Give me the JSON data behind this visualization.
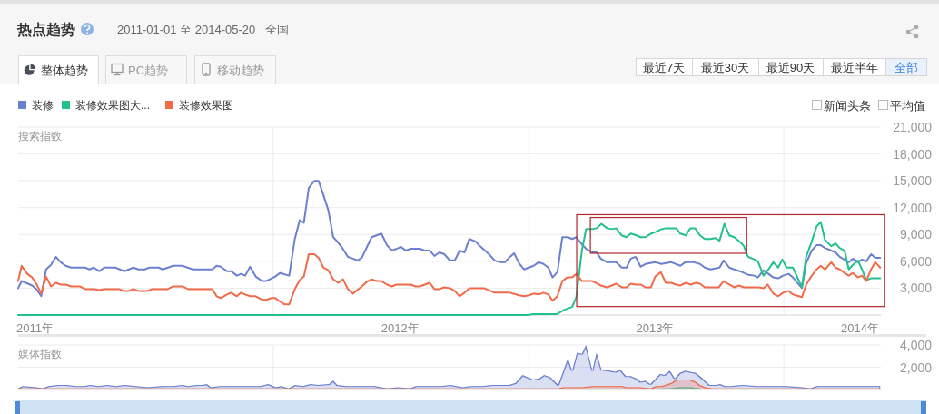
{
  "chart_data": [
    {
      "type": "line",
      "title": "热点趋势",
      "subtitle": "2011-01-01 至 2014-05-20",
      "ylabel": "搜索指数",
      "annotations": [
        "全国",
        "整体趋势",
        "PC趋势",
        "移动趋势",
        "最近7天",
        "最近30天",
        "最近90天",
        "最近半年",
        "全部",
        "新闻头条",
        "平均值"
      ],
      "xlim": [
        "2011-01-01",
        "2014-05-20"
      ],
      "xticks": [
        {
          "value": "2011-01-25",
          "label": "2011年"
        },
        {
          "value": "2012-01-01",
          "label": null
        },
        {
          "value": "2012-07-01",
          "label": "2012年"
        },
        {
          "value": "2013-01-01",
          "label": null
        },
        {
          "value": "2013-07-01",
          "label": "2013年"
        },
        {
          "value": "2014-01-01",
          "label": null
        },
        {
          "value": "2014-04-20",
          "label": "2014年"
        }
      ],
      "ylim": [
        0,
        21000
      ],
      "yticks": [
        {
          "value": 3000,
          "label": "3,000"
        },
        {
          "value": 6000,
          "label": "6,000"
        },
        {
          "value": 9000,
          "label": "9,000"
        },
        {
          "value": 12000,
          "label": "12,000"
        },
        {
          "value": 15000,
          "label": "15,000"
        },
        {
          "value": 18000,
          "label": "18,000"
        },
        {
          "value": 21000,
          "label": "21,000"
        }
      ],
      "grid": true,
      "legend": "top left",
      "series": [
        {
          "name": "装修",
          "color": "#6c80d0",
          "x": [
            "2011-01-01",
            "2011-01-06",
            "2011-01-21",
            "2011-01-27",
            "2011-02-03",
            "2011-02-10",
            "2011-02-17",
            "2011-02-24",
            "2011-03-03",
            "2011-03-10",
            "2011-03-18",
            "2011-04-07",
            "2011-04-13",
            "2011-04-19",
            "2011-04-27",
            "2011-05-04",
            "2011-05-20",
            "2011-06-02",
            "2011-06-15",
            "2011-06-22",
            "2011-07-01",
            "2011-07-08",
            "2011-07-21",
            "2011-07-27",
            "2011-08-11",
            "2011-08-24",
            "2011-09-08",
            "2011-10-06",
            "2011-10-12",
            "2011-10-18",
            "2011-10-27",
            "2011-11-02",
            "2011-11-10",
            "2011-11-16",
            "2011-11-22",
            "2011-11-29",
            "2011-12-07",
            "2011-12-16",
            "2011-12-22",
            "2012-01-04",
            "2012-01-11",
            "2012-01-24",
            "2012-02-01",
            "2012-02-08",
            "2012-02-14",
            "2012-02-21",
            "2012-02-29",
            "2012-03-06",
            "2012-03-13",
            "2012-03-20",
            "2012-03-27",
            "2012-04-02",
            "2012-04-09",
            "2012-04-17",
            "2012-05-01",
            "2012-05-07",
            "2012-05-21",
            "2012-06-04",
            "2012-06-12",
            "2012-06-19",
            "2012-07-02",
            "2012-07-09",
            "2012-07-16",
            "2012-07-29",
            "2012-08-05",
            "2012-08-12",
            "2012-08-19",
            "2012-08-26",
            "2012-09-02",
            "2012-09-10",
            "2012-09-17",
            "2012-09-24",
            "2012-10-01",
            "2012-10-08",
            "2012-10-17",
            "2012-10-23",
            "2012-11-05",
            "2012-11-13",
            "2012-11-21",
            "2012-11-28",
            "2012-12-05",
            "2012-12-11",
            "2012-12-18",
            "2012-12-25",
            "2013-01-01",
            "2013-01-08",
            "2013-01-15",
            "2013-01-22",
            "2013-01-29",
            "2013-02-04",
            "2013-02-11",
            "2013-02-18",
            "2013-02-26",
            "2013-03-04",
            "2013-03-10",
            "2013-03-18",
            "2013-03-24",
            "2013-04-02",
            "2013-04-08",
            "2013-04-14",
            "2013-04-23",
            "2013-05-06",
            "2013-05-14",
            "2013-05-21",
            "2013-05-27",
            "2013-06-03",
            "2013-06-10",
            "2013-06-17",
            "2013-07-01",
            "2013-07-10",
            "2013-07-24",
            "2013-08-06",
            "2013-08-13",
            "2013-08-25",
            "2013-09-03",
            "2013-09-10",
            "2013-09-18",
            "2013-10-01",
            "2013-10-07",
            "2013-10-15",
            "2013-10-22",
            "2013-10-30",
            "2013-11-05",
            "2013-11-11",
            "2013-11-20",
            "2013-11-25",
            "2013-12-03",
            "2013-12-10",
            "2013-12-17",
            "2013-12-24",
            "2013-12-31",
            "2014-01-08",
            "2014-01-14",
            "2014-01-27",
            "2014-02-02",
            "2014-02-10",
            "2014-02-17",
            "2014-02-23",
            "2014-03-01",
            "2014-03-10",
            "2014-03-16",
            "2014-03-22",
            "2014-04-04",
            "2014-04-10",
            "2014-04-17",
            "2014-04-23",
            "2014-04-29",
            "2014-05-06",
            "2014-05-12",
            "2014-05-19"
          ],
          "values": [
            3000,
            3800,
            3300,
            2900,
            2100,
            5100,
            5600,
            6500,
            5900,
            5500,
            5300,
            5300,
            5100,
            5300,
            4900,
            5300,
            5300,
            4900,
            5300,
            5100,
            5100,
            5300,
            5300,
            5100,
            5500,
            5500,
            5100,
            5100,
            5500,
            5400,
            4900,
            4900,
            4400,
            4600,
            4400,
            5400,
            4300,
            3800,
            3800,
            4300,
            4700,
            4400,
            8500,
            10600,
            10300,
            14200,
            15000,
            15000,
            13400,
            11700,
            8700,
            8200,
            7500,
            6500,
            6100,
            6400,
            8700,
            9100,
            7800,
            7200,
            7600,
            7200,
            7400,
            7400,
            7200,
            7200,
            6600,
            7000,
            6800,
            6100,
            6100,
            7200,
            7000,
            8500,
            8200,
            7700,
            6800,
            6100,
            5900,
            5900,
            6500,
            6900,
            5800,
            5100,
            5300,
            5500,
            5900,
            5700,
            5300,
            4200,
            4800,
            8700,
            8700,
            8500,
            8700,
            7900,
            7400,
            7000,
            7000,
            6300,
            5900,
            5900,
            5300,
            5300,
            6300,
            6500,
            5400,
            5700,
            5900,
            5700,
            5900,
            5500,
            5900,
            5900,
            5700,
            5300,
            5100,
            5300,
            6100,
            5300,
            5100,
            4900,
            4700,
            4500,
            4400,
            4200,
            5000,
            4600,
            4200,
            4100,
            4400,
            4600,
            4200,
            3000,
            5800,
            7200,
            7800,
            7800,
            7500,
            7200,
            7000,
            6500,
            5900,
            6300,
            5900,
            6200,
            6000,
            6800,
            6400,
            6400
          ]
        },
        {
          "name": "装修效果图大...",
          "color": "#22c08e",
          "x": [
            "2011-01-01",
            "2012-12-31",
            "2013-01-07",
            "2013-02-10",
            "2013-02-21",
            "2013-03-04",
            "2013-03-10",
            "2013-03-18",
            "2013-03-24",
            "2013-04-02",
            "2013-04-08",
            "2013-04-15",
            "2013-04-23",
            "2013-04-30",
            "2013-05-06",
            "2013-05-14",
            "2013-05-21",
            "2013-05-27",
            "2013-06-04",
            "2013-06-10",
            "2013-06-17",
            "2013-06-25",
            "2013-07-02",
            "2013-07-10",
            "2013-07-16",
            "2013-07-24",
            "2013-07-31",
            "2013-08-06",
            "2013-08-14",
            "2013-08-20",
            "2013-08-27",
            "2013-09-03",
            "2013-09-10",
            "2013-09-18",
            "2013-09-25",
            "2013-10-01",
            "2013-10-08",
            "2013-10-15",
            "2013-10-22",
            "2013-10-30",
            "2013-11-05",
            "2013-11-08",
            "2013-11-11",
            "2013-11-20",
            "2013-11-25",
            "2013-12-03",
            "2013-12-10",
            "2013-12-17",
            "2013-12-24",
            "2013-12-30",
            "2014-01-05",
            "2014-01-14",
            "2014-01-27",
            "2014-02-02",
            "2014-02-10",
            "2014-02-17",
            "2014-02-23",
            "2014-03-01",
            "2014-03-10",
            "2014-03-16",
            "2014-03-22",
            "2014-03-29",
            "2014-04-04",
            "2014-04-10",
            "2014-04-17",
            "2014-04-23",
            "2014-04-29",
            "2014-05-06",
            "2014-05-12",
            "2014-05-19"
          ],
          "values": [
            0,
            0,
            100,
            100,
            600,
            900,
            2000,
            7200,
            9600,
            9600,
            9700,
            10200,
            9700,
            9600,
            9700,
            8900,
            8700,
            9100,
            8900,
            8700,
            8700,
            9100,
            9300,
            9600,
            9700,
            9700,
            9700,
            9100,
            8900,
            9700,
            9700,
            8900,
            8500,
            8500,
            8600,
            8300,
            10200,
            8900,
            8700,
            8200,
            7700,
            7000,
            6500,
            6200,
            6000,
            4400,
            5100,
            5900,
            5300,
            6200,
            5300,
            5300,
            3100,
            6500,
            8200,
            9900,
            10400,
            8400,
            7700,
            8000,
            7500,
            7200,
            5100,
            5600,
            6100,
            5100,
            3900,
            4100,
            4100,
            4100
          ]
        },
        {
          "name": "装修效果图",
          "color": "#ef6b4a",
          "x": [
            "2011-01-01",
            "2011-01-06",
            "2011-01-14",
            "2011-01-21",
            "2011-01-27",
            "2011-02-03",
            "2011-02-10",
            "2011-02-17",
            "2011-02-24",
            "2011-03-03",
            "2011-03-10",
            "2011-03-18",
            "2011-03-30",
            "2011-04-07",
            "2011-04-20",
            "2011-04-27",
            "2011-05-04",
            "2011-05-25",
            "2011-06-02",
            "2011-06-08",
            "2011-06-15",
            "2011-06-22",
            "2011-07-05",
            "2011-07-12",
            "2011-08-03",
            "2011-08-11",
            "2011-08-24",
            "2011-09-01",
            "2011-10-06",
            "2011-10-12",
            "2011-10-18",
            "2011-10-27",
            "2011-11-02",
            "2011-11-10",
            "2011-11-16",
            "2011-11-22",
            "2011-11-29",
            "2011-12-07",
            "2011-12-16",
            "2011-12-22",
            "2011-12-30",
            "2012-01-04",
            "2012-01-11",
            "2012-01-17",
            "2012-01-24",
            "2012-02-01",
            "2012-02-08",
            "2012-02-14",
            "2012-02-21",
            "2012-02-29",
            "2012-03-06",
            "2012-03-13",
            "2012-03-20",
            "2012-03-27",
            "2012-04-03",
            "2012-04-10",
            "2012-04-17",
            "2012-04-24",
            "2012-05-07",
            "2012-05-14",
            "2012-05-21",
            "2012-05-28",
            "2012-06-04",
            "2012-06-12",
            "2012-06-19",
            "2012-06-25",
            "2012-07-16",
            "2012-07-23",
            "2012-07-29",
            "2012-08-12",
            "2012-08-19",
            "2012-08-26",
            "2012-09-02",
            "2012-09-10",
            "2012-09-17",
            "2012-09-24",
            "2012-10-01",
            "2012-10-08",
            "2012-10-29",
            "2012-11-13",
            "2012-12-05",
            "2012-12-18",
            "2012-12-25",
            "2013-01-01",
            "2013-01-08",
            "2013-01-15",
            "2013-01-22",
            "2013-01-29",
            "2013-02-04",
            "2013-02-11",
            "2013-02-18",
            "2013-02-25",
            "2013-03-04",
            "2013-03-10",
            "2013-03-18",
            "2013-04-02",
            "2013-04-14",
            "2013-04-23",
            "2013-04-30",
            "2013-05-06",
            "2013-05-14",
            "2013-05-21",
            "2013-05-27",
            "2013-06-03",
            "2013-06-10",
            "2013-06-17",
            "2013-06-25",
            "2013-07-01",
            "2013-07-09",
            "2013-07-16",
            "2013-07-24",
            "2013-07-31",
            "2013-08-06",
            "2013-08-14",
            "2013-08-21",
            "2013-08-28",
            "2013-09-03",
            "2013-09-10",
            "2013-09-30",
            "2013-10-07",
            "2013-10-15",
            "2013-10-22",
            "2013-10-29",
            "2013-11-05",
            "2013-11-26",
            "2013-12-03",
            "2013-12-09",
            "2013-12-17",
            "2013-12-24",
            "2013-12-31",
            "2014-01-08",
            "2014-01-14",
            "2014-01-27",
            "2014-02-02",
            "2014-02-10",
            "2014-02-17",
            "2014-02-23",
            "2014-03-01",
            "2014-03-10",
            "2014-03-16",
            "2014-03-22",
            "2014-03-29",
            "2014-04-04",
            "2014-04-10",
            "2014-04-17",
            "2014-04-23",
            "2014-04-29",
            "2014-05-06",
            "2014-05-12",
            "2014-05-19"
          ],
          "values": [
            3800,
            5500,
            4600,
            4200,
            3500,
            2400,
            4300,
            3200,
            3600,
            3400,
            3400,
            3200,
            3200,
            2900,
            2900,
            2800,
            2900,
            2900,
            2700,
            2700,
            2900,
            2700,
            2700,
            2900,
            2900,
            3200,
            3200,
            2900,
            2900,
            2100,
            1900,
            2300,
            2500,
            2100,
            2500,
            2300,
            2100,
            2100,
            1700,
            1700,
            1900,
            1900,
            1500,
            1200,
            1200,
            2900,
            3900,
            4300,
            6800,
            6800,
            6400,
            5300,
            5000,
            4000,
            3600,
            4000,
            2900,
            2400,
            3200,
            3700,
            4000,
            3800,
            3800,
            3400,
            3200,
            3400,
            3400,
            3200,
            3200,
            3600,
            2900,
            2900,
            3100,
            3000,
            2700,
            2100,
            2500,
            3000,
            3000,
            2500,
            2500,
            2200,
            2100,
            2200,
            2400,
            2300,
            2500,
            2300,
            1600,
            2100,
            3800,
            4200,
            4200,
            4600,
            3800,
            3800,
            3300,
            3100,
            3300,
            3500,
            3100,
            3100,
            3500,
            3400,
            3400,
            3100,
            3100,
            4300,
            4800,
            3600,
            3600,
            3400,
            3300,
            3600,
            3400,
            3600,
            3500,
            3100,
            3100,
            3800,
            3400,
            3100,
            3300,
            3100,
            3100,
            3000,
            3400,
            2400,
            2100,
            2500,
            2700,
            2300,
            2000,
            3400,
            4400,
            5100,
            5500,
            5100,
            5900,
            5300,
            5100,
            4700,
            4400,
            4700,
            4200,
            4400,
            3800,
            5100,
            5900,
            5300
          ]
        }
      ]
    },
    {
      "type": "area",
      "ylabel": "媒体指数",
      "xlim": [
        "2011-01-01",
        "2014-05-20"
      ],
      "xticks": [
        {
          "value": "2012-01-01",
          "label": null
        },
        {
          "value": "2013-01-01",
          "label": null
        },
        {
          "value": "2014-01-01",
          "label": null
        }
      ],
      "ylim": [
        0,
        4000
      ],
      "yticks": [
        {
          "value": 2000,
          "label": "2,000"
        },
        {
          "value": 4000,
          "label": "4,000"
        }
      ],
      "grid": true,
      "tick_labels": "y",
      "series": [
        {
          "color": "#6c80d0",
          "x": [
            "2011-01-01",
            "2011-01-07",
            "2011-01-27",
            "2011-02-05",
            "2011-02-13",
            "2011-02-27",
            "2011-03-12",
            "2011-03-24",
            "2011-04-05",
            "2011-04-14",
            "2011-04-26",
            "2011-05-08",
            "2011-05-21",
            "2011-06-02",
            "2011-06-19",
            "2011-07-05",
            "2011-07-26",
            "2011-08-11",
            "2011-08-24",
            "2011-09-01",
            "2011-09-13",
            "2011-09-22",
            "2011-09-28",
            "2011-10-04",
            "2011-10-16",
            "2011-11-02",
            "2011-11-18",
            "2011-12-13",
            "2011-12-25",
            "2012-01-05",
            "2012-01-13",
            "2012-01-23",
            "2012-02-01",
            "2012-02-13",
            "2012-02-23",
            "2012-03-05",
            "2012-03-21",
            "2012-03-27",
            "2012-04-02",
            "2012-04-15",
            "2012-04-27",
            "2012-05-10",
            "2012-05-26",
            "2012-06-12",
            "2012-06-28",
            "2012-07-15",
            "2012-07-23",
            "2012-08-09",
            "2012-08-29",
            "2012-09-11",
            "2012-09-28",
            "2012-10-10",
            "2012-10-27",
            "2012-11-09",
            "2012-11-22",
            "2012-12-04",
            "2012-12-13",
            "2012-12-23",
            "2013-01-07",
            "2013-01-16",
            "2013-01-23",
            "2013-02-01",
            "2013-02-12",
            "2013-02-26",
            "2013-03-04",
            "2013-03-11",
            "2013-03-18",
            "2013-03-24",
            "2013-04-02",
            "2013-04-08",
            "2013-04-15",
            "2013-04-27",
            "2013-05-05",
            "2013-05-12",
            "2013-05-20",
            "2013-05-27",
            "2013-06-04",
            "2013-06-10",
            "2013-06-17",
            "2013-06-24",
            "2013-07-08",
            "2013-07-14",
            "2013-07-22",
            "2013-07-29",
            "2013-08-05",
            "2013-08-13",
            "2013-08-20",
            "2013-08-28",
            "2013-09-03",
            "2013-09-10",
            "2013-09-17",
            "2013-09-26",
            "2013-10-02",
            "2013-10-09",
            "2013-10-17",
            "2013-11-03",
            "2013-11-24",
            "2013-12-15",
            "2014-01-05",
            "2014-01-27",
            "2014-02-08",
            "2014-02-17",
            "2014-03-10",
            "2014-03-31",
            "2014-04-21",
            "2014-05-19"
          ],
          "values": [
            100,
            300,
            200,
            100,
            300,
            400,
            400,
            300,
            300,
            400,
            300,
            400,
            300,
            400,
            300,
            200,
            300,
            300,
            400,
            300,
            400,
            400,
            500,
            200,
            300,
            300,
            300,
            300,
            500,
            200,
            300,
            100,
            400,
            300,
            500,
            400,
            500,
            800,
            400,
            300,
            300,
            300,
            300,
            100,
            200,
            100,
            300,
            300,
            300,
            400,
            200,
            300,
            300,
            400,
            400,
            400,
            600,
            1300,
            900,
            1000,
            1300,
            1100,
            400,
            2800,
            1700,
            3300,
            3200,
            4000,
            1700,
            3300,
            1800,
            1700,
            1600,
            1800,
            1200,
            1200,
            1000,
            700,
            800,
            500,
            1400,
            1300,
            1700,
            1000,
            1500,
            1700,
            1600,
            1500,
            1200,
            800,
            400,
            400,
            500,
            300,
            300,
            400,
            300,
            300,
            300,
            200,
            100,
            300,
            300,
            300,
            300,
            300
          ]
        },
        {
          "color": "#22c08e",
          "x": [
            "2011-01-01",
            "2013-02-12",
            "2013-03-18",
            "2013-07-22",
            "2013-08-05",
            "2013-08-20",
            "2013-09-03",
            "2013-09-17",
            "2014-05-19"
          ],
          "values": [
            0,
            0,
            0,
            100,
            200,
            200,
            100,
            0,
            0
          ]
        },
        {
          "color": "#ef6b4a",
          "x": [
            "2011-01-01",
            "2012-08-17",
            "2013-02-12",
            "2013-02-19",
            "2013-03-18",
            "2013-04-02",
            "2013-04-11",
            "2013-04-27",
            "2013-05-14",
            "2013-05-21",
            "2013-06-10",
            "2013-06-24",
            "2013-07-02",
            "2013-07-10",
            "2013-07-24",
            "2013-07-31",
            "2013-08-20",
            "2013-08-28",
            "2013-09-03",
            "2013-09-11",
            "2013-09-21",
            "2014-05-19"
          ],
          "values": [
            100,
            100,
            100,
            200,
            200,
            300,
            300,
            300,
            300,
            200,
            200,
            100,
            300,
            300,
            600,
            900,
            900,
            700,
            400,
            200,
            100,
            100
          ]
        }
      ]
    }
  ]
}
